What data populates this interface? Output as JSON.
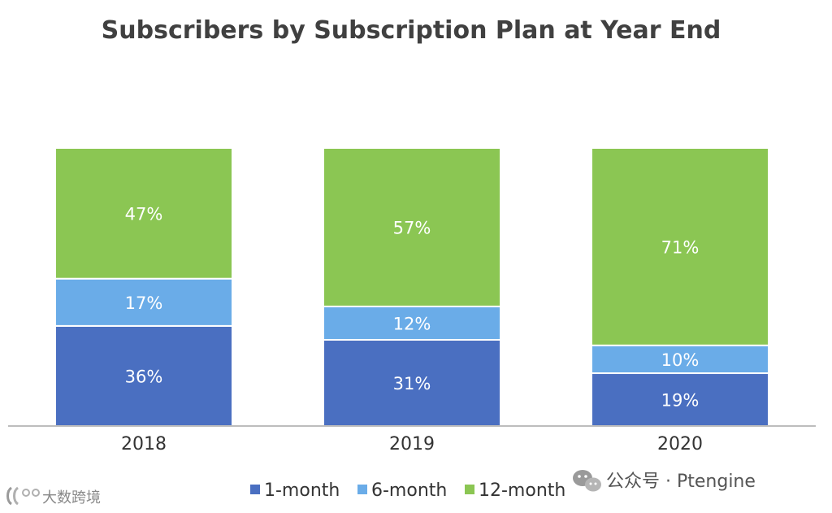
{
  "chart_data": {
    "type": "bar",
    "stacked": true,
    "title": "Subscribers by Subscription Plan at Year End",
    "categories": [
      "2018",
      "2019",
      "2020"
    ],
    "series": [
      {
        "name": "1-month",
        "values": [
          36,
          31,
          19
        ],
        "labels": [
          "36%",
          "31%",
          "19%"
        ],
        "color": "#4a6fc1"
      },
      {
        "name": "6-month",
        "values": [
          17,
          12,
          10
        ],
        "labels": [
          "17%",
          "12%",
          "10%"
        ],
        "color": "#6aace8"
      },
      {
        "name": "12-month",
        "values": [
          47,
          57,
          71
        ],
        "labels": [
          "47%",
          "57%",
          "71%"
        ],
        "color": "#8bc653"
      }
    ],
    "ylim": [
      0,
      100
    ],
    "grid": false,
    "legend_position": "bottom"
  },
  "watermarks": {
    "right": "公众号 · Ptengine",
    "left": "大数跨境"
  },
  "colors": {
    "title": "#404040",
    "axis": "#bdbdbd",
    "text": "#333333"
  }
}
